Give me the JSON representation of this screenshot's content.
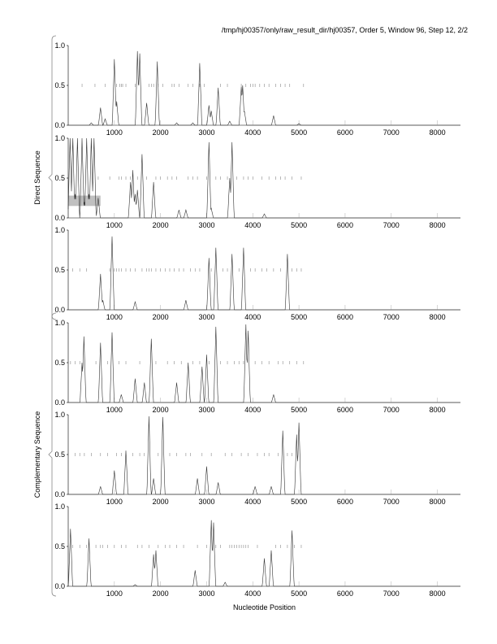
{
  "title": "/tmp/hj00357/only/raw_result_dir/hj00357, Order 5, Window 96, Step 12, 2/2",
  "chart_data": {
    "type": "line",
    "xlabel": "Nucleotide Position",
    "xlim": [
      0,
      8500
    ],
    "ylim": [
      0,
      1
    ],
    "xticks": [
      1000,
      2000,
      3000,
      4000,
      5000,
      6000,
      7000,
      8000
    ],
    "yticks": [
      "0.0",
      "0.5",
      "1.0"
    ],
    "groups": [
      {
        "label": "Direct Sequence",
        "panels": [
          0,
          1,
          2
        ]
      },
      {
        "label": "Complementary Sequence",
        "panels": [
          3,
          4,
          5
        ]
      }
    ],
    "highlight": {
      "panel": 1,
      "x": [
        0,
        700
      ],
      "y": [
        0.15,
        0.28
      ],
      "color": "#c0c0c0"
    },
    "panels": [
      {
        "peaks": [
          [
            500,
            0.03
          ],
          [
            700,
            0.22
          ],
          [
            800,
            0.08
          ],
          [
            1000,
            0.83
          ],
          [
            1050,
            0.3
          ],
          [
            1500,
            0.93
          ],
          [
            1550,
            0.9
          ],
          [
            1700,
            0.28
          ],
          [
            1930,
            0.8
          ],
          [
            2350,
            0.03
          ],
          [
            2700,
            0.03
          ],
          [
            2850,
            0.78
          ],
          [
            3050,
            0.25
          ],
          [
            3100,
            0.18
          ],
          [
            3250,
            0.47
          ],
          [
            3500,
            0.05
          ],
          [
            3750,
            0.48
          ],
          [
            3780,
            0.5
          ],
          [
            3820,
            0.17
          ],
          [
            4450,
            0.12
          ],
          [
            5000,
            0.02
          ]
        ],
        "marks": [
          300,
          580,
          800,
          1050,
          1120,
          1150,
          1180,
          1250,
          1450,
          1750,
          1800,
          1850,
          1950,
          2050,
          2250,
          2300,
          2400,
          2600,
          2700,
          2850,
          2950,
          3300,
          3450,
          3750,
          3850,
          3950,
          4000,
          4050,
          4150,
          4250,
          4350,
          4500,
          4600,
          4700,
          4800,
          5100
        ]
      },
      {
        "peaks": [
          [
            40,
            1
          ],
          [
            100,
            1
          ],
          [
            150,
            0.3
          ],
          [
            200,
            1
          ],
          [
            300,
            1
          ],
          [
            350,
            0.2
          ],
          [
            400,
            1
          ],
          [
            450,
            0.3
          ],
          [
            500,
            1
          ],
          [
            560,
            1
          ],
          [
            650,
            0.25
          ],
          [
            1350,
            0.45
          ],
          [
            1400,
            0.6
          ],
          [
            1450,
            0.3
          ],
          [
            1500,
            0.35
          ],
          [
            1600,
            0.8
          ],
          [
            1850,
            0.45
          ],
          [
            2400,
            0.1
          ],
          [
            2550,
            0.1
          ],
          [
            3050,
            0.95
          ],
          [
            3100,
            0.12
          ],
          [
            3500,
            0.5
          ],
          [
            3550,
            0.95
          ],
          [
            4250,
            0.05
          ]
        ],
        "marks": [
          650,
          900,
          1100,
          1150,
          1250,
          1350,
          1500,
          1700,
          1900,
          2000,
          2150,
          2250,
          2350,
          2600,
          2700,
          2800,
          3000,
          3200,
          3300,
          3450,
          3650,
          3800,
          3900,
          4000,
          4200,
          4350,
          4500,
          4600,
          4700,
          4850,
          5050
        ]
      },
      {
        "peaks": [
          [
            700,
            0.45
          ],
          [
            750,
            0.12
          ],
          [
            950,
            0.92
          ],
          [
            1450,
            0.1
          ],
          [
            2550,
            0.12
          ],
          [
            3050,
            0.65
          ],
          [
            3200,
            0.78
          ],
          [
            3550,
            0.7
          ],
          [
            3800,
            0.78
          ],
          [
            4750,
            0.7
          ]
        ],
        "marks": [
          100,
          250,
          400,
          900,
          1000,
          1050,
          1100,
          1150,
          1250,
          1350,
          1450,
          1600,
          1700,
          1750,
          1800,
          1900,
          2000,
          2100,
          2200,
          2300,
          2400,
          2500,
          2650,
          2750,
          2850,
          3100,
          3350,
          3450,
          3700,
          3950,
          4050,
          4200,
          4300,
          4450,
          4600,
          4850,
          4950,
          5050
        ]
      },
      {
        "peaks": [
          [
            300,
            0.5
          ],
          [
            340,
            0.83
          ],
          [
            700,
            0.75
          ],
          [
            950,
            0.88
          ],
          [
            1150,
            0.1
          ],
          [
            1450,
            0.3
          ],
          [
            1650,
            0.25
          ],
          [
            1800,
            0.8
          ],
          [
            2350,
            0.25
          ],
          [
            2600,
            0.5
          ],
          [
            2900,
            0.45
          ],
          [
            3000,
            0.6
          ],
          [
            3200,
            0.95
          ],
          [
            3850,
            0.98
          ],
          [
            3900,
            0.9
          ],
          [
            4450,
            0.1
          ]
        ],
        "marks": [
          50,
          150,
          250,
          600,
          850,
          1100,
          1250,
          1550,
          1900,
          2150,
          2300,
          2450,
          2700,
          2850,
          3050,
          3300,
          3450,
          3600,
          3700,
          3800,
          4050,
          4200,
          4350,
          4550,
          4650,
          4800,
          4950,
          5100
        ]
      },
      {
        "peaks": [
          [
            700,
            0.1
          ],
          [
            1000,
            0.3
          ],
          [
            1250,
            0.55
          ],
          [
            1750,
            0.98
          ],
          [
            1850,
            0.2
          ],
          [
            2050,
            0.97
          ],
          [
            2800,
            0.2
          ],
          [
            3000,
            0.35
          ],
          [
            3250,
            0.15
          ],
          [
            4050,
            0.1
          ],
          [
            4400,
            0.1
          ],
          [
            4650,
            0.8
          ],
          [
            4950,
            0.75
          ],
          [
            5000,
            0.9
          ]
        ],
        "marks": [
          150,
          250,
          350,
          500,
          700,
          850,
          1050,
          1150,
          1400,
          1550,
          1650,
          1950,
          2200,
          2350,
          2550,
          2650,
          2900,
          3100,
          3400,
          3550,
          3750,
          3900,
          4100,
          4250,
          4350,
          4550,
          4750,
          4850
        ]
      },
      {
        "peaks": [
          [
            50,
            0.72
          ],
          [
            450,
            0.6
          ],
          [
            1450,
            0.02
          ],
          [
            1850,
            0.4
          ],
          [
            1900,
            0.45
          ],
          [
            2750,
            0.2
          ],
          [
            3100,
            0.83
          ],
          [
            3150,
            0.8
          ],
          [
            3400,
            0.05
          ],
          [
            4250,
            0.35
          ],
          [
            4400,
            0.45
          ],
          [
            4850,
            0.7
          ]
        ],
        "marks": [
          100,
          250,
          400,
          600,
          700,
          750,
          850,
          1000,
          1150,
          1250,
          1500,
          1600,
          1750,
          1950,
          2100,
          2200,
          2350,
          2500,
          2800,
          3000,
          3200,
          3300,
          3500,
          3550,
          3600,
          3650,
          3700,
          3750,
          3800,
          3850,
          3900,
          4100,
          4500,
          4600,
          4750,
          4900,
          5050
        ]
      }
    ]
  }
}
